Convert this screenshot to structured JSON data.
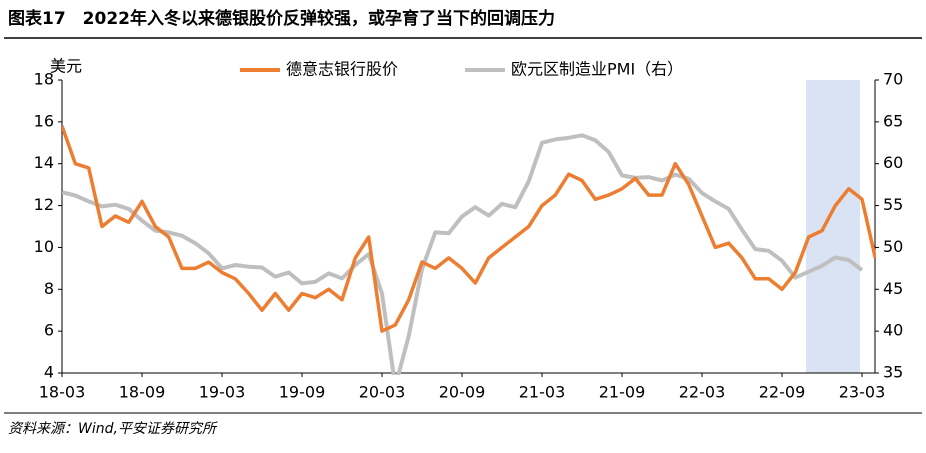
{
  "chart_data": {
    "type": "line",
    "title": "图表17　2022年入冬以来德银股价反弹较强，或孕育了当下的回调压力",
    "source": "资料来源：Wind,平安证券研究所",
    "y_label": "美元",
    "categories": [
      "18-03",
      null,
      null,
      null,
      null,
      null,
      "18-09",
      null,
      null,
      null,
      null,
      null,
      "19-03",
      null,
      null,
      null,
      null,
      null,
      "19-09",
      null,
      null,
      null,
      null,
      null,
      "20-03",
      null,
      null,
      null,
      null,
      null,
      "20-09",
      null,
      null,
      null,
      null,
      null,
      "21-03",
      null,
      null,
      null,
      null,
      null,
      "21-09",
      null,
      null,
      null,
      null,
      null,
      "22-03",
      null,
      null,
      null,
      null,
      null,
      "22-09",
      null,
      null,
      null,
      null,
      null,
      "23-03",
      null
    ],
    "series": [
      {
        "name": "德意志银行股价",
        "color": "#ED7D31",
        "values": [
          15.8,
          14.0,
          13.8,
          11.0,
          11.5,
          11.2,
          12.2,
          11.0,
          10.5,
          9.0,
          9.0,
          9.3,
          8.8,
          8.5,
          7.8,
          7.0,
          7.8,
          7.0,
          7.8,
          7.6,
          8.0,
          7.5,
          9.5,
          10.5,
          6.0,
          6.3,
          7.5,
          9.3,
          9.0,
          9.5,
          9.0,
          8.3,
          9.5,
          10.0,
          10.5,
          11.0,
          12.0,
          12.5,
          13.5,
          13.2,
          12.3,
          12.5,
          12.8,
          13.3,
          12.5,
          12.5,
          14.0,
          13.0,
          11.5,
          10.0,
          10.2,
          9.5,
          8.5,
          8.5,
          8.0,
          8.8,
          10.5,
          10.8,
          12.0,
          12.8,
          12.3,
          9.5
        ]
      },
      {
        "name": "欧元区制造业PMI（右）",
        "color": "#BFBFBF",
        "axis": "y2",
        "values": [
          56.6,
          56.2,
          55.5,
          54.9,
          55.1,
          54.6,
          53.2,
          52.0,
          51.8,
          51.4,
          50.5,
          49.3,
          47.5,
          47.9,
          47.7,
          47.6,
          46.5,
          47.0,
          45.7,
          45.9,
          46.9,
          46.3,
          47.9,
          49.2,
          44.5,
          33.4,
          39.4,
          47.4,
          51.8,
          51.7,
          53.7,
          54.8,
          53.8,
          55.2,
          54.8,
          57.9,
          62.5,
          62.9,
          63.1,
          63.4,
          62.8,
          61.4,
          58.6,
          58.3,
          58.4,
          58.0,
          58.7,
          58.2,
          56.5,
          55.5,
          54.6,
          52.1,
          49.8,
          49.6,
          48.4,
          46.4,
          47.1,
          47.8,
          48.8,
          48.5,
          47.3,
          null
        ]
      }
    ],
    "ylim": [
      4,
      18
    ],
    "yticks": [
      4,
      6,
      8,
      10,
      12,
      14,
      16,
      18
    ],
    "y2lim": [
      35,
      70
    ],
    "y2ticks": [
      35,
      40,
      45,
      50,
      55,
      60,
      65,
      70
    ],
    "legend": "top"
  }
}
